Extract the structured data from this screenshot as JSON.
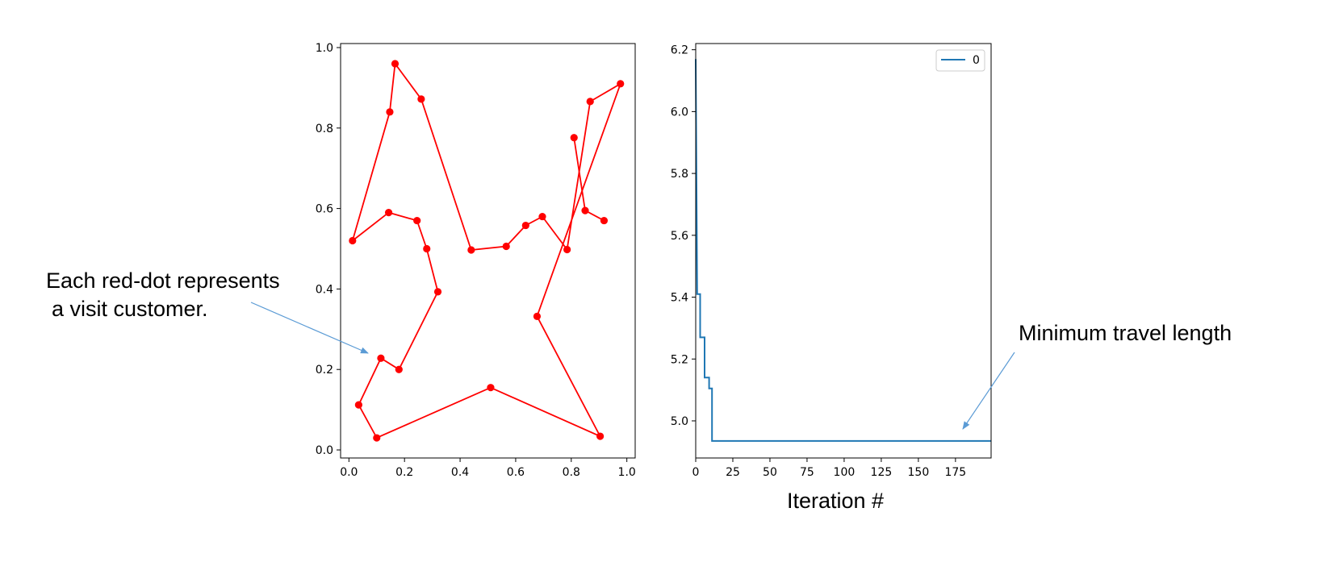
{
  "chart_data": [
    {
      "type": "line",
      "title": "",
      "xlabel": "",
      "ylabel": "",
      "xlim": [
        -0.03,
        1.03
      ],
      "ylim": [
        -0.02,
        1.01
      ],
      "xticks": [
        "0.0",
        "0.2",
        "0.4",
        "0.6",
        "0.8",
        "1.0"
      ],
      "yticks": [
        "0.0",
        "0.2",
        "0.4",
        "0.6",
        "0.8",
        "1.0"
      ],
      "grid": false,
      "markers": true,
      "color": "#ff0000",
      "route": [
        [
          0.013,
          0.52
        ],
        [
          0.147,
          0.84
        ],
        [
          0.166,
          0.96
        ],
        [
          0.26,
          0.872
        ],
        [
          0.44,
          0.497
        ],
        [
          0.566,
          0.506
        ],
        [
          0.636,
          0.558
        ],
        [
          0.696,
          0.58
        ],
        [
          0.785,
          0.498
        ],
        [
          0.868,
          0.866
        ],
        [
          0.977,
          0.91
        ],
        [
          0.677,
          0.332
        ],
        [
          0.904,
          0.034
        ],
        [
          0.51,
          0.155
        ],
        [
          0.1,
          0.03
        ],
        [
          0.035,
          0.112
        ],
        [
          0.115,
          0.228
        ],
        [
          0.18,
          0.2
        ],
        [
          0.32,
          0.393
        ],
        [
          0.28,
          0.5
        ],
        [
          0.245,
          0.57
        ],
        [
          0.143,
          0.59
        ],
        [
          0.013,
          0.52
        ]
      ],
      "extra_segment": [
        [
          0.81,
          0.776
        ],
        [
          0.85,
          0.595
        ],
        [
          0.918,
          0.57
        ]
      ]
    },
    {
      "type": "line",
      "title": "",
      "xlabel": "Iteration #",
      "ylabel": "",
      "xlim": [
        0,
        199
      ],
      "ylim": [
        4.88,
        6.22
      ],
      "xticks": [
        "0",
        "25",
        "50",
        "75",
        "100",
        "125",
        "150",
        "175"
      ],
      "yticks": [
        "5.0",
        "5.2",
        "5.4",
        "5.6",
        "5.8",
        "6.0",
        "6.2"
      ],
      "grid": false,
      "legend_placement": "top-right",
      "color": "#1f77b4",
      "series": [
        {
          "name": "0",
          "points": [
            [
              0,
              6.17
            ],
            [
              1,
              5.41
            ],
            [
              3,
              5.41
            ],
            [
              3,
              5.27
            ],
            [
              6,
              5.27
            ],
            [
              6,
              5.14
            ],
            [
              9,
              5.14
            ],
            [
              9,
              5.105
            ],
            [
              11,
              5.105
            ],
            [
              11,
              4.935
            ],
            [
              199,
              4.935
            ]
          ]
        }
      ]
    }
  ],
  "annotations": {
    "left_line1": "Each red-dot represents",
    "left_line2": "a visit customer.",
    "right_label": "Minimum travel length"
  },
  "colors": {
    "arrow": "#5b9bd5"
  }
}
